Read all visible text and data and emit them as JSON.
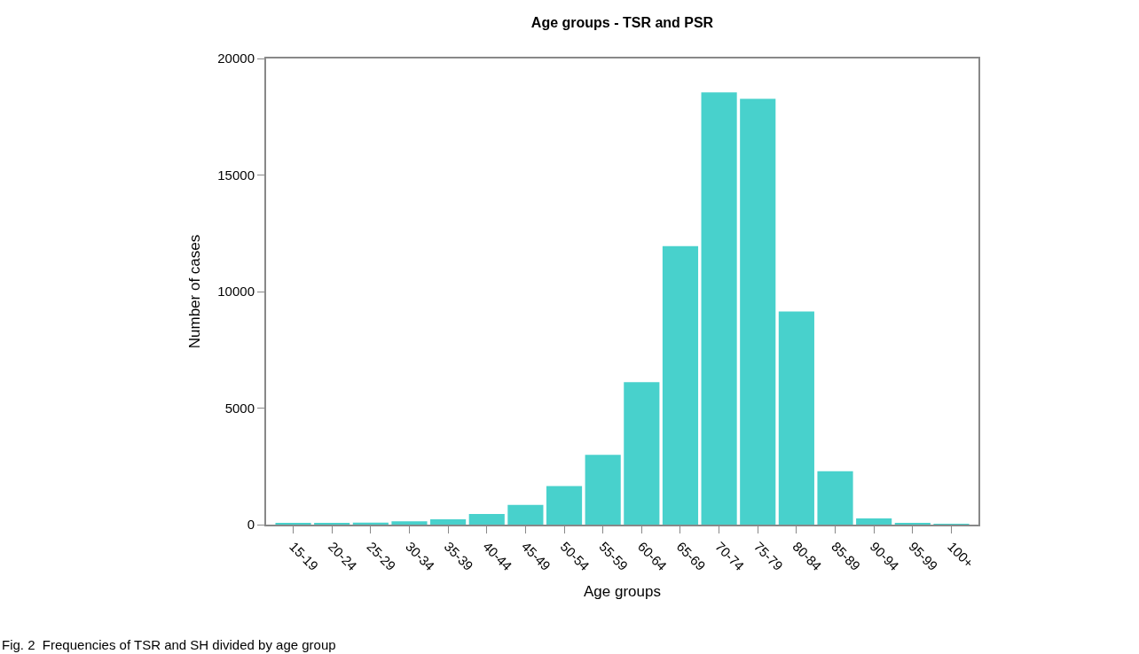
{
  "chart_data": {
    "type": "bar",
    "title": "Age groups - TSR and PSR",
    "xlabel": "Age groups",
    "ylabel": "Number of cases",
    "categories": [
      "15-19",
      "20-24",
      "25-29",
      "30-34",
      "35-39",
      "40-44",
      "45-49",
      "50-54",
      "55-59",
      "60-64",
      "65-69",
      "70-74",
      "75-79",
      "80-84",
      "85-89",
      "90-94",
      "95-99",
      "100+"
    ],
    "values": [
      50,
      60,
      90,
      140,
      230,
      460,
      850,
      1650,
      2990,
      6110,
      11950,
      18550,
      18270,
      9140,
      2290,
      270,
      60,
      20
    ],
    "color": "#48d1cc",
    "ylim": [
      0,
      20000
    ],
    "yticks": [
      0,
      5000,
      10000,
      15000,
      20000
    ],
    "annotations": [
      "Fig. 2  Frequencies of TSR and SH divided by age group"
    ]
  }
}
